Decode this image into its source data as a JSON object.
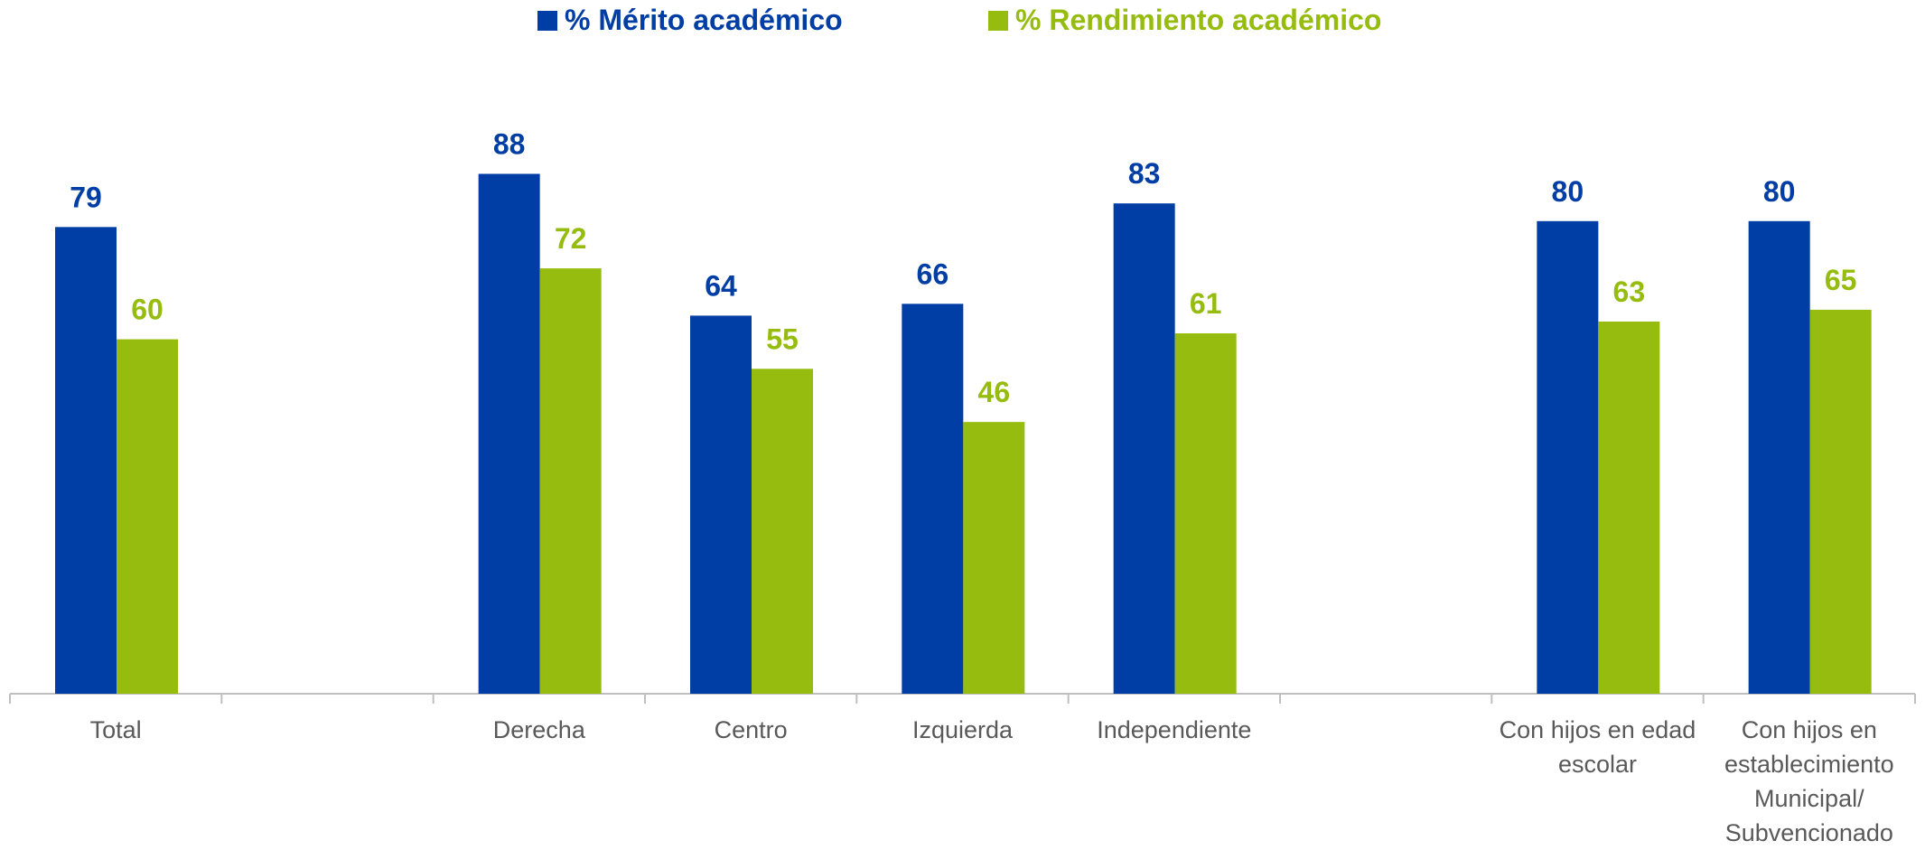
{
  "chart_data": {
    "type": "bar",
    "categories": [
      "Total",
      null,
      "Derecha",
      "Centro",
      "Izquierda",
      "Independiente",
      null,
      "Con hijos en edad escolar",
      "Con hijos en establecimiento Municipal/ Subvencionado"
    ],
    "series": [
      {
        "name": "% Mérito académico",
        "color": "#003da5",
        "values": [
          79,
          null,
          88,
          64,
          66,
          83,
          null,
          80,
          80
        ]
      },
      {
        "name": "% Rendimiento académico",
        "color": "#95bc0f",
        "values": [
          60,
          null,
          72,
          55,
          46,
          61,
          null,
          63,
          65
        ]
      }
    ],
    "ylim": [
      0,
      100
    ],
    "legend": "top"
  }
}
